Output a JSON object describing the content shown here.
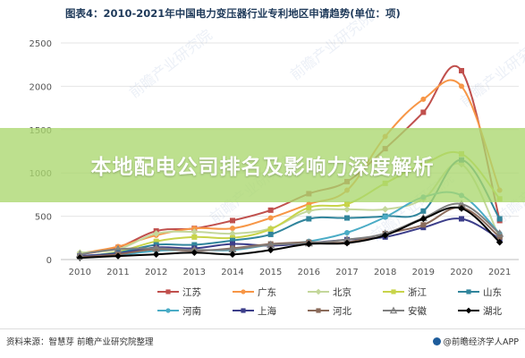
{
  "header": {
    "title": "图表4：2010-2021年中国电力变压器行业专利地区申请趋势(单位：项)"
  },
  "banner": {
    "text": "本地配电公司排名及影响力深度解析"
  },
  "footer": {
    "source": "资料来源：智慧芽 前瞻产业研究院整理",
    "brand": "@前瞻经济学人APP"
  },
  "watermark": "前瞻产业研究院",
  "chart_data": {
    "type": "line",
    "title": "图表4：2010-2021年中国电力变压器行业专利地区申请趋势(单位：项)",
    "x": [
      "2010",
      "2011",
      "2012",
      "2013",
      "2014",
      "2015",
      "2016",
      "2017",
      "2018",
      "2019",
      "2020",
      "2021"
    ],
    "yticks": [
      0,
      500,
      1000,
      1500,
      2000,
      2500
    ],
    "ylim": [
      0,
      2500
    ],
    "grid": true,
    "legend_position": "bottom",
    "series": [
      {
        "name": "江苏",
        "color": "#c0504d",
        "marker": "square",
        "values": [
          60,
          140,
          330,
          360,
          450,
          570,
          760,
          900,
          1280,
          1700,
          2180,
          450
        ]
      },
      {
        "name": "广东",
        "color": "#f79646",
        "marker": "circle",
        "values": [
          70,
          150,
          280,
          360,
          360,
          480,
          640,
          800,
          1420,
          1850,
          2000,
          800
        ]
      },
      {
        "name": "北京",
        "color": "#c4d79b",
        "marker": "diamond",
        "values": [
          80,
          120,
          300,
          320,
          300,
          360,
          560,
          580,
          580,
          700,
          1100,
          250
        ]
      },
      {
        "name": "浙江",
        "color": "#c8d44a",
        "marker": "square",
        "values": [
          30,
          90,
          210,
          260,
          250,
          350,
          600,
          640,
          880,
          1100,
          1220,
          700
        ]
      },
      {
        "name": "山东",
        "color": "#31859c",
        "marker": "square",
        "values": [
          40,
          80,
          170,
          170,
          220,
          290,
          470,
          480,
          500,
          560,
          1150,
          470
        ]
      },
      {
        "name": "河南",
        "color": "#4bacc6",
        "marker": "circle",
        "values": [
          20,
          50,
          100,
          110,
          110,
          170,
          210,
          310,
          490,
          720,
          740,
          300
        ]
      },
      {
        "name": "上海",
        "color": "#3c3e8a",
        "marker": "square",
        "values": [
          40,
          70,
          140,
          130,
          180,
          160,
          190,
          230,
          260,
          370,
          470,
          240
        ]
      },
      {
        "name": "河北",
        "color": "#8a6a5a",
        "marker": "square",
        "values": [
          30,
          60,
          120,
          100,
          130,
          180,
          200,
          200,
          300,
          400,
          600,
          260
        ]
      },
      {
        "name": "安徽",
        "color": "#7f7f7f",
        "marker": "triangle",
        "values": [
          60,
          120,
          130,
          110,
          120,
          170,
          190,
          230,
          300,
          480,
          640,
          300
        ]
      },
      {
        "name": "湖北",
        "color": "#000000",
        "marker": "diamond",
        "values": [
          20,
          40,
          60,
          80,
          60,
          110,
          180,
          190,
          280,
          470,
          590,
          200
        ]
      }
    ]
  }
}
